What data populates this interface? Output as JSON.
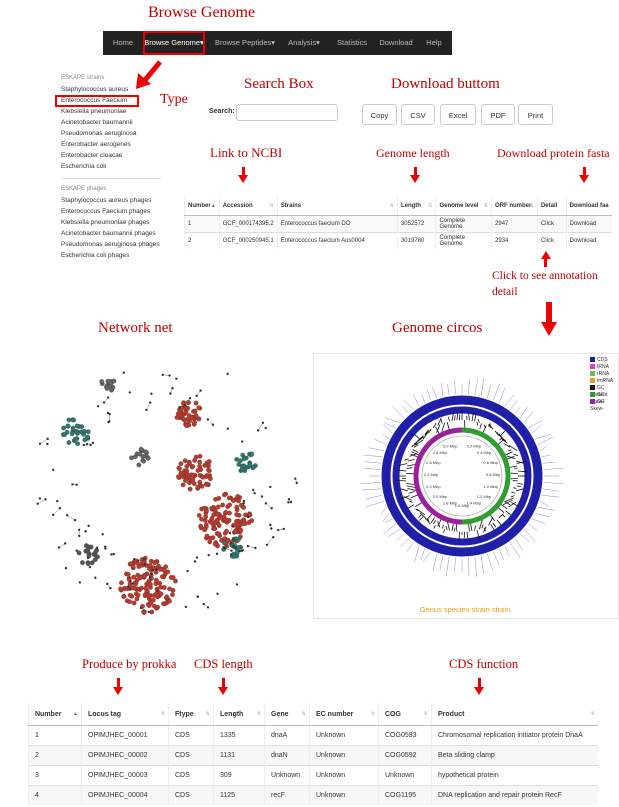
{
  "annotations": {
    "browse_genome": "Browse Genome",
    "type": "Type",
    "search_box": "Search Box",
    "download_button": "Download buttom",
    "link_ncbi": "Link to NCBI",
    "genome_length": "Genome length",
    "download_protein": "Download protein fasta",
    "click_annotation_1": "Click to see annotation",
    "click_annotation_2": "detail",
    "network_net": "Network net",
    "genome_circos": "Genome circos",
    "produce_prokka": "Produce by prokka",
    "cds_length": "CDS length",
    "cds_function": "CDS function"
  },
  "navbar": {
    "items": [
      "Home",
      "Browse Genome▾",
      "Browse Peptides▾",
      "Analysis▾",
      "Statistics",
      "Download",
      "Help"
    ]
  },
  "sidebar": {
    "strains_header": "ESKAPE strains",
    "strains": [
      "Staphylococcus aureus",
      "Enterococcus Faecium",
      "Klebsiella pneumoniae",
      "Acinetobacter baumannii",
      "Pseudomonas aeruginosa",
      "Enterobacter aerogenes",
      "Enterobacter cloacae",
      "Escherichia coli"
    ],
    "phages_header": "ESKAPE phages",
    "phages": [
      "Staphylococcus aureus phages",
      "Enterococcus Faecium phages",
      "Klebsiella pneumoniae phages",
      "Acinetobacter baumannii phages",
      "Pseudomonas aeruginosa phages",
      "Escherichia coli phages"
    ]
  },
  "search": {
    "label": "Search:",
    "value": ""
  },
  "buttons": [
    "Copy",
    "CSV",
    "Excel",
    "PDF",
    "Print"
  ],
  "genome_table": {
    "headers": [
      "Number",
      "Accession",
      "Strains",
      "Length",
      "Genome level",
      "ORF number",
      "Detail",
      "Download faa"
    ],
    "rows": [
      [
        "1",
        "GCF_000174395.2",
        "Enterococcus faecium DO",
        "3052572",
        "Complete Genome",
        "2947",
        "Click",
        "Download"
      ],
      [
        "2",
        "GCF_000250945.1",
        "Enterococcus faecium Aus0004",
        "3019780",
        "Complete Genome",
        "2934",
        "Click",
        "Download"
      ]
    ]
  },
  "circos": {
    "legend": [
      {
        "label": "CDS",
        "color": "#1f1fa8"
      },
      {
        "label": "tRNA",
        "color": "#d43fd4"
      },
      {
        "label": "rRNA",
        "color": "#6fbf4f"
      },
      {
        "label": "tmRNA",
        "color": "#e0a030"
      },
      {
        "label": "GC Content",
        "color": "#111111"
      },
      {
        "label": "GC Skew+",
        "color": "#2e9e2e"
      },
      {
        "label": "GC Skew-",
        "color": "#9c1f9c"
      }
    ],
    "caption": "Genus species strain strain.",
    "ticks": [
      "0.2 Mbp",
      "0.4 Mbp",
      "0.6 Mbp",
      "0.8 Mbp",
      "1.0 Mbp",
      "1.2 Mbp",
      "1.4 Mbp",
      "1.6 Mbp",
      "1.8 Mbp",
      "2.0 Mbp",
      "2.2 Mbp",
      "2.4 Mbp",
      "2.6 Mbp",
      "2.8 Mbp",
      "3.0 Mbp"
    ]
  },
  "cds_table": {
    "headers": [
      "Number",
      "Locus tag",
      "Ftype",
      "Length",
      "Gene",
      "EC number",
      "COG",
      "Product"
    ],
    "rows": [
      [
        "1",
        "OPIMJHEC_00001",
        "CDS",
        "1335",
        "dnaA",
        "Unknown",
        "COG0593",
        "Chromosomal replication initiator protein DnaA"
      ],
      [
        "2",
        "OPIMJHEC_00002",
        "CDS",
        "1131",
        "dnaN",
        "Unknown",
        "COG0592",
        "Beta sliding clamp"
      ],
      [
        "3",
        "OPIMJHEC_00003",
        "CDS",
        "309",
        "Unknown",
        "Unknown",
        "Unknown",
        "hypothetical protein"
      ],
      [
        "4",
        "OPIMJHEC_00004",
        "CDS",
        "1125",
        "recF",
        "Unknown",
        "COG1195",
        "DNA replication and repair protein RecF"
      ]
    ]
  }
}
